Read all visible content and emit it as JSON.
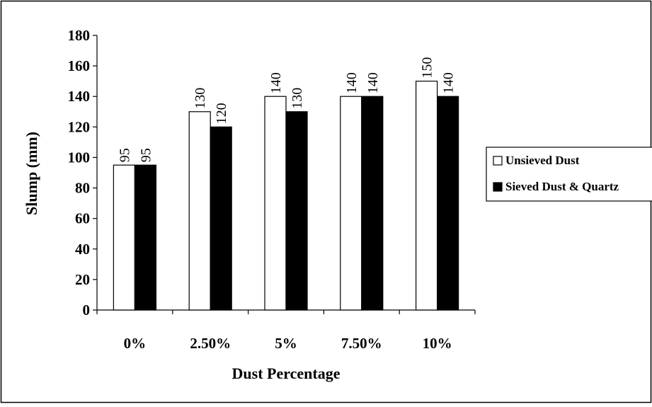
{
  "chart_data": {
    "type": "bar",
    "title": "",
    "xlabel": "Dust Percentage",
    "ylabel": "Slump (mm)",
    "categories": [
      "0%",
      "2.50%",
      "5%",
      "7.50%",
      "10%"
    ],
    "series": [
      {
        "name": "Unsieved Dust",
        "values": [
          95,
          130,
          140,
          140,
          150
        ],
        "color": "#ffffff"
      },
      {
        "name": "Sieved Dust & Quartz",
        "values": [
          95,
          120,
          130,
          140,
          140
        ],
        "color": "#000000"
      }
    ],
    "ylim": [
      0,
      180
    ],
    "yticks": [
      0,
      20,
      40,
      60,
      80,
      100,
      120,
      140,
      160,
      180
    ],
    "grid": false,
    "legend_position": "right",
    "data_labels": true
  }
}
